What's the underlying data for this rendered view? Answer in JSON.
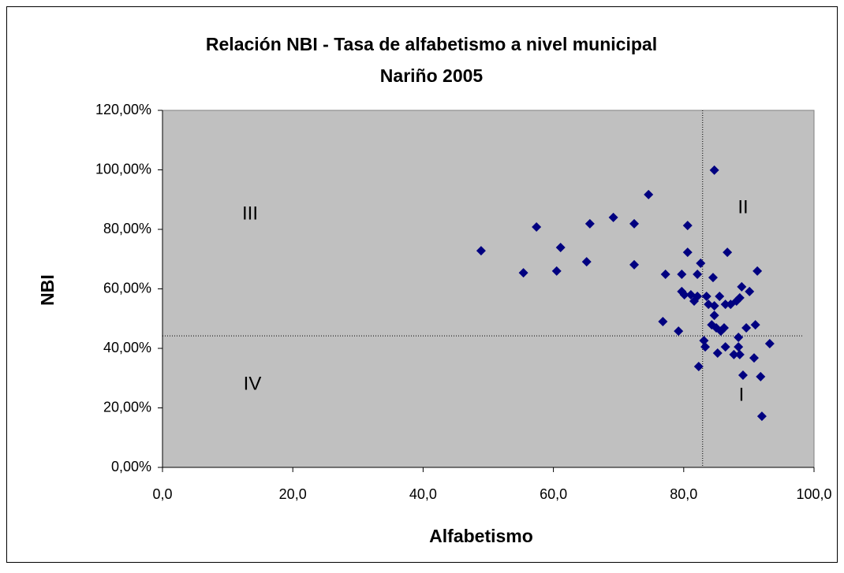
{
  "chart_data": {
    "type": "scatter",
    "title": "Relación NBI - Tasa de alfabetismo a nivel municipal",
    "subtitle": "Nariño 2005",
    "x_label": "Alfabetismo",
    "y_label": "NBI",
    "color": "#000080",
    "background": "#c0c0c0",
    "xlim": [
      0,
      100
    ],
    "ylim": [
      0,
      120
    ],
    "xticks": [
      {
        "value": 0,
        "label": "0,0"
      },
      {
        "value": 20,
        "label": "20,0"
      },
      {
        "value": 40,
        "label": "40,0"
      },
      {
        "value": 60,
        "label": "60,0"
      },
      {
        "value": 80,
        "label": "80,0"
      },
      {
        "value": 100,
        "label": "100,0"
      }
    ],
    "yticks": [
      {
        "value": 0,
        "label": "0,00%"
      },
      {
        "value": 20,
        "label": "20,00%"
      },
      {
        "value": 40,
        "label": "40,00%"
      },
      {
        "value": 60,
        "label": "60,00%"
      },
      {
        "value": 80,
        "label": "80,00%"
      },
      {
        "value": 100,
        "label": "100,00%"
      },
      {
        "value": 120,
        "label": "120,00%"
      }
    ],
    "reference_x": 82.9,
    "reference_y": 44.2,
    "quadrant_labels": [
      "III",
      "II",
      "IV",
      "I"
    ],
    "x": [
      48.9,
      57.4,
      55.4,
      60.5,
      61.1,
      65.6,
      65.1,
      69.2,
      72.4,
      72.4,
      74.6,
      77.2,
      76.8,
      79.2,
      79.7,
      79.7,
      80.1,
      80.6,
      80.6,
      81.1,
      81.6,
      82.1,
      82.1,
      82.6,
      82.3,
      83.1,
      83.3,
      83.5,
      83.8,
      84.3,
      84.5,
      84.7,
      84.7,
      85.0,
      85.2,
      84.7,
      85.5,
      85.7,
      86.2,
      86.4,
      86.4,
      86.7,
      87.2,
      87.7,
      88.1,
      88.4,
      88.4,
      88.6,
      88.6,
      88.9,
      89.1,
      89.6,
      90.1,
      90.8,
      91.0,
      91.3,
      91.8,
      92.0,
      93.2
    ],
    "values": [
      72.8,
      80.8,
      65.4,
      66.0,
      73.9,
      81.9,
      69.1,
      84.0,
      81.9,
      68.1,
      91.7,
      64.9,
      49.0,
      45.8,
      64.9,
      59.1,
      58.0,
      81.3,
      72.3,
      58.0,
      55.9,
      57.5,
      64.9,
      68.6,
      33.9,
      42.6,
      40.5,
      57.5,
      54.8,
      47.9,
      63.8,
      51.1,
      54.3,
      46.9,
      38.4,
      99.9,
      57.5,
      45.8,
      46.9,
      54.8,
      40.5,
      72.3,
      54.8,
      37.9,
      55.9,
      43.7,
      40.5,
      37.9,
      57.0,
      60.7,
      31.0,
      46.9,
      59.1,
      36.8,
      47.9,
      66.0,
      30.5,
      17.2,
      41.6
    ]
  }
}
